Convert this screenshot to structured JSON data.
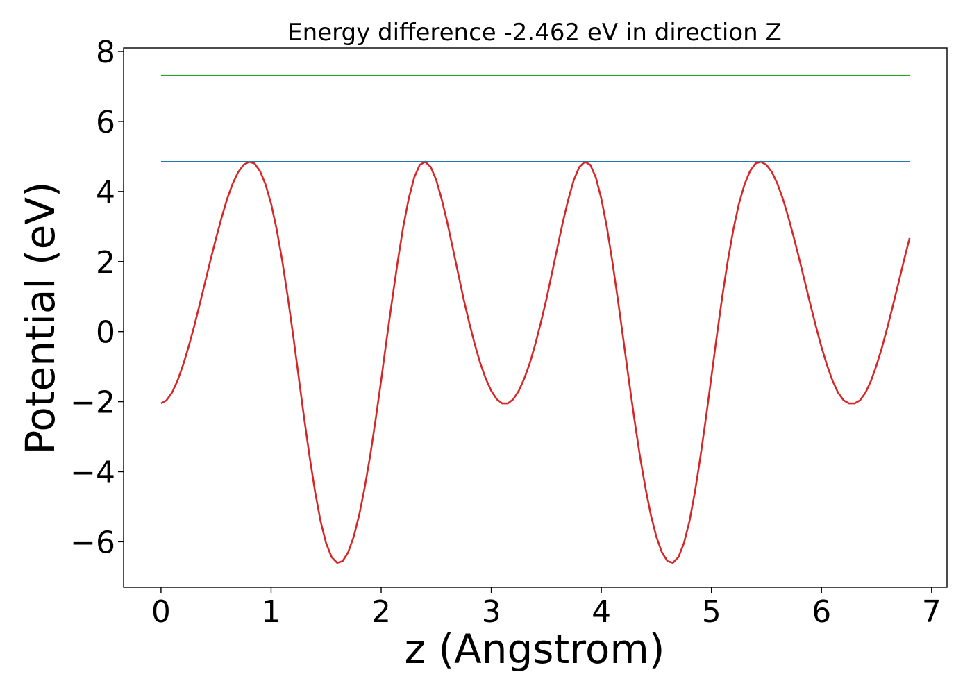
{
  "chart_data": {
    "type": "line",
    "title": "Energy difference -2.462 eV in direction Z",
    "xlabel": "z (Angstrom)",
    "ylabel": "Potential (eV)",
    "xlim": [
      -0.34,
      7.14
    ],
    "ylim": [
      -7.3,
      8.1
    ],
    "xticks": [
      0,
      1,
      2,
      3,
      4,
      5,
      6,
      7
    ],
    "xtick_labels": [
      "0",
      "1",
      "2",
      "3",
      "4",
      "5",
      "6",
      "7"
    ],
    "yticks": [
      -6,
      -4,
      -2,
      0,
      2,
      4,
      6,
      8
    ],
    "ytick_labels": [
      "−6",
      "−4",
      "−2",
      "0",
      "2",
      "4",
      "6",
      "8"
    ],
    "grid": false,
    "legend": "none",
    "series": [
      {
        "kind": "curve",
        "color": "#d62728",
        "x": [
          0.0,
          0.05,
          0.1,
          0.15,
          0.2,
          0.25,
          0.3,
          0.35,
          0.4,
          0.45,
          0.5,
          0.55,
          0.6,
          0.65,
          0.7,
          0.75,
          0.8,
          0.85,
          0.9,
          0.95,
          1.0,
          1.05,
          1.1,
          1.15,
          1.2,
          1.25,
          1.3,
          1.35,
          1.4,
          1.45,
          1.5,
          1.55,
          1.6,
          1.65,
          1.7,
          1.75,
          1.8,
          1.85,
          1.9,
          1.95,
          2.0,
          2.05,
          2.1,
          2.15,
          2.2,
          2.25,
          2.3,
          2.35,
          2.4,
          2.45,
          2.5,
          2.55,
          2.6,
          2.65,
          2.7,
          2.75,
          2.8,
          2.85,
          2.9,
          2.95,
          3.0,
          3.05,
          3.1,
          3.15,
          3.2,
          3.25,
          3.3,
          3.35,
          3.4,
          3.45,
          3.5,
          3.55,
          3.6,
          3.65,
          3.7,
          3.75,
          3.8,
          3.85,
          3.9,
          3.95,
          4.0,
          4.05,
          4.1,
          4.15,
          4.2,
          4.25,
          4.3,
          4.35,
          4.4,
          4.45,
          4.5,
          4.55,
          4.6,
          4.65,
          4.7,
          4.75,
          4.8,
          4.85,
          4.9,
          4.95,
          5.0,
          5.05,
          5.1,
          5.15,
          5.2,
          5.25,
          5.3,
          5.35,
          5.4,
          5.45,
          5.5,
          5.55,
          5.6,
          5.65,
          5.7,
          5.75,
          5.8,
          5.85,
          5.9,
          5.95,
          6.0,
          6.05,
          6.1,
          6.15,
          6.2,
          6.25,
          6.3,
          6.35,
          6.4,
          6.45,
          6.5,
          6.55,
          6.6,
          6.65,
          6.7,
          6.75,
          6.8
        ],
        "y": [
          -2.05,
          -1.96,
          -1.74,
          -1.4,
          -0.96,
          -0.44,
          0.14,
          0.76,
          1.4,
          2.05,
          2.67,
          3.25,
          3.78,
          4.22,
          4.55,
          4.76,
          4.85,
          4.8,
          4.58,
          4.2,
          3.65,
          2.93,
          2.05,
          1.03,
          -0.1,
          -1.28,
          -2.46,
          -3.58,
          -4.58,
          -5.42,
          -6.04,
          -6.44,
          -6.6,
          -6.55,
          -6.3,
          -5.86,
          -5.24,
          -4.46,
          -3.54,
          -2.5,
          -1.39,
          -0.22,
          0.92,
          2.0,
          2.98,
          3.8,
          4.4,
          4.76,
          4.85,
          4.7,
          4.33,
          3.78,
          3.12,
          2.39,
          1.65,
          0.92,
          0.25,
          -0.36,
          -0.9,
          -1.34,
          -1.69,
          -1.93,
          -2.05,
          -2.05,
          -1.93,
          -1.69,
          -1.34,
          -0.9,
          -0.36,
          0.25,
          0.92,
          1.65,
          2.39,
          3.12,
          3.78,
          4.33,
          4.7,
          4.85,
          4.76,
          4.4,
          3.8,
          2.98,
          2.0,
          0.92,
          -0.22,
          -1.39,
          -2.5,
          -3.54,
          -4.46,
          -5.24,
          -5.86,
          -6.3,
          -6.55,
          -6.6,
          -6.44,
          -6.04,
          -5.42,
          -4.58,
          -3.58,
          -2.46,
          -1.28,
          -0.1,
          1.03,
          2.05,
          2.93,
          3.65,
          4.2,
          4.58,
          4.8,
          4.85,
          4.76,
          4.55,
          4.22,
          3.78,
          3.25,
          2.67,
          2.05,
          1.4,
          0.76,
          0.14,
          -0.44,
          -0.96,
          -1.4,
          -1.74,
          -1.96,
          -2.05,
          -2.05,
          -1.96,
          -1.74,
          -1.4,
          -0.96,
          -0.44,
          0.14,
          0.76,
          1.4,
          2.05,
          2.67
        ]
      },
      {
        "kind": "hline",
        "color": "#1f77b4",
        "x": [
          0.0,
          6.8
        ],
        "y": [
          4.85,
          4.85
        ]
      },
      {
        "kind": "hline",
        "color": "#2ca02c",
        "x": [
          0.0,
          6.8
        ],
        "y": [
          7.31,
          7.31
        ]
      }
    ]
  }
}
